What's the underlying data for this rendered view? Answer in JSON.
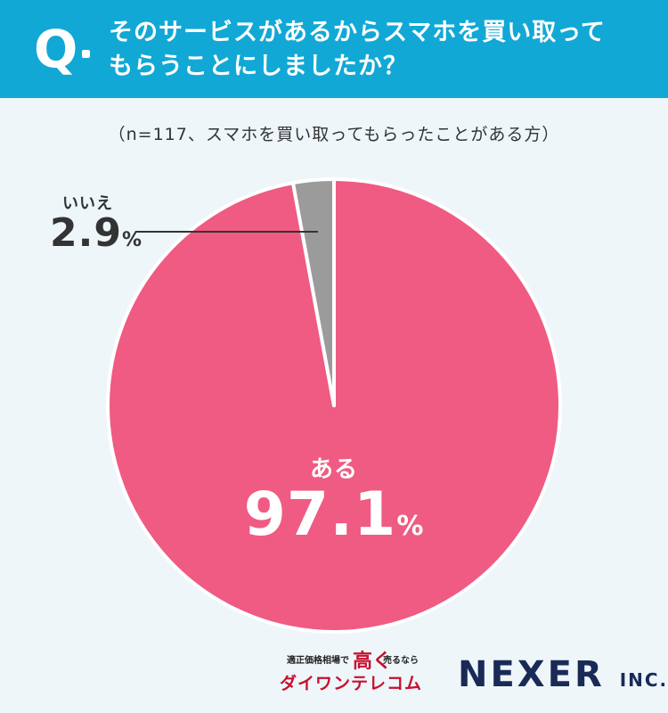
{
  "header": {
    "q_letter": "Q",
    "question_line1": "そのサービスがあるからスマホを買い取って",
    "question_line2": "もらうことにしましたか？"
  },
  "sample_note": "（n=117、スマホを買い取ってもらったことがある方）",
  "chart_data": {
    "type": "pie",
    "title": "そのサービスがあるからスマホを買い取ってもらうことにしましたか？",
    "subtitle": "（n=117、スマホを買い取ってもらったことがある方）",
    "slices": [
      {
        "label": "ある",
        "value": 97.1,
        "display": "97.1",
        "unit": "%",
        "color": "#ef5b82"
      },
      {
        "label": "いいえ",
        "value": 2.9,
        "display": "2.9",
        "unit": "%",
        "color": "#9b9b9b"
      }
    ]
  },
  "footer": {
    "logo1_prefix": "適正価格相場で",
    "logo1_accent": "高く",
    "logo1_suffix": "売るなら",
    "logo1_brand": "ダイワンテレコム",
    "logo2_main": "NEXER",
    "logo2_suffix": "INC."
  },
  "colors": {
    "header_bg": "#12a8d6",
    "page_bg": "#eef6fa",
    "leader_line": "#333333"
  }
}
